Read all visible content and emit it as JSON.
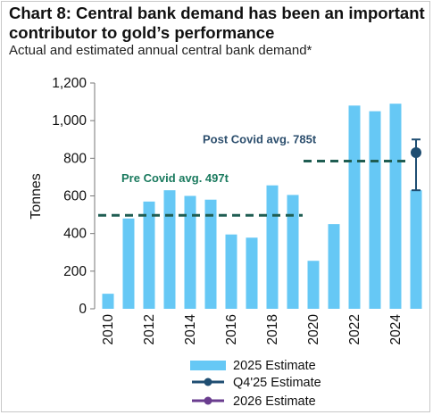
{
  "header": {
    "title": "Chart 8: Central bank demand has been an important contributor to gold’s performance",
    "subtitle": "Actual and estimated annual central bank demand*"
  },
  "colors": {
    "bar": "#66c8f5",
    "avg_line": "#1f5d52",
    "pre_covid_text": "#1a7a5e",
    "post_covid_text": "#2d4f6e",
    "q4_estimate": "#1f4e72",
    "estimate_2026": "#6a3d8f"
  },
  "chart_data": {
    "type": "bar",
    "title": "Chart 8: Central bank demand has been an important contributor to gold’s performance",
    "subtitle": "Actual and estimated annual central bank demand*",
    "ylabel": "Tonnes",
    "xlabel": "",
    "ylim": [
      0,
      1200
    ],
    "yticks": [
      "0",
      "200",
      "400",
      "600",
      "800",
      "1,000",
      "1,200"
    ],
    "categories": [
      "2010",
      "2011",
      "2012",
      "2013",
      "2014",
      "2015",
      "2016",
      "2017",
      "2018",
      "2019",
      "2020",
      "2021",
      "2022",
      "2023",
      "2024",
      "2025"
    ],
    "xtick_labels": [
      "2010",
      "2012",
      "2014",
      "2016",
      "2018",
      "2020",
      "2022",
      "2024"
    ],
    "series": [
      {
        "name": "2025 Estimate",
        "values": [
          80,
          480,
          570,
          630,
          600,
          580,
          395,
          378,
          656,
          605,
          255,
          450,
          1080,
          1050,
          1090,
          630
        ]
      }
    ],
    "annotations": [
      {
        "label": "Pre Covid avg. 497t",
        "value": 497,
        "from": "2010",
        "to": "2019"
      },
      {
        "label": "Post Covid avg. 785t",
        "value": 785,
        "from": "2020",
        "to": "2024"
      }
    ],
    "q4_estimate": {
      "name": "Q4'25 Estimate",
      "category": "2025",
      "value": 830,
      "low": 630,
      "high": 900
    },
    "legend": [
      "2025 Estimate",
      "Q4'25 Estimate",
      "2026 Estimate"
    ],
    "legend_position": "bottom",
    "grid": false
  }
}
